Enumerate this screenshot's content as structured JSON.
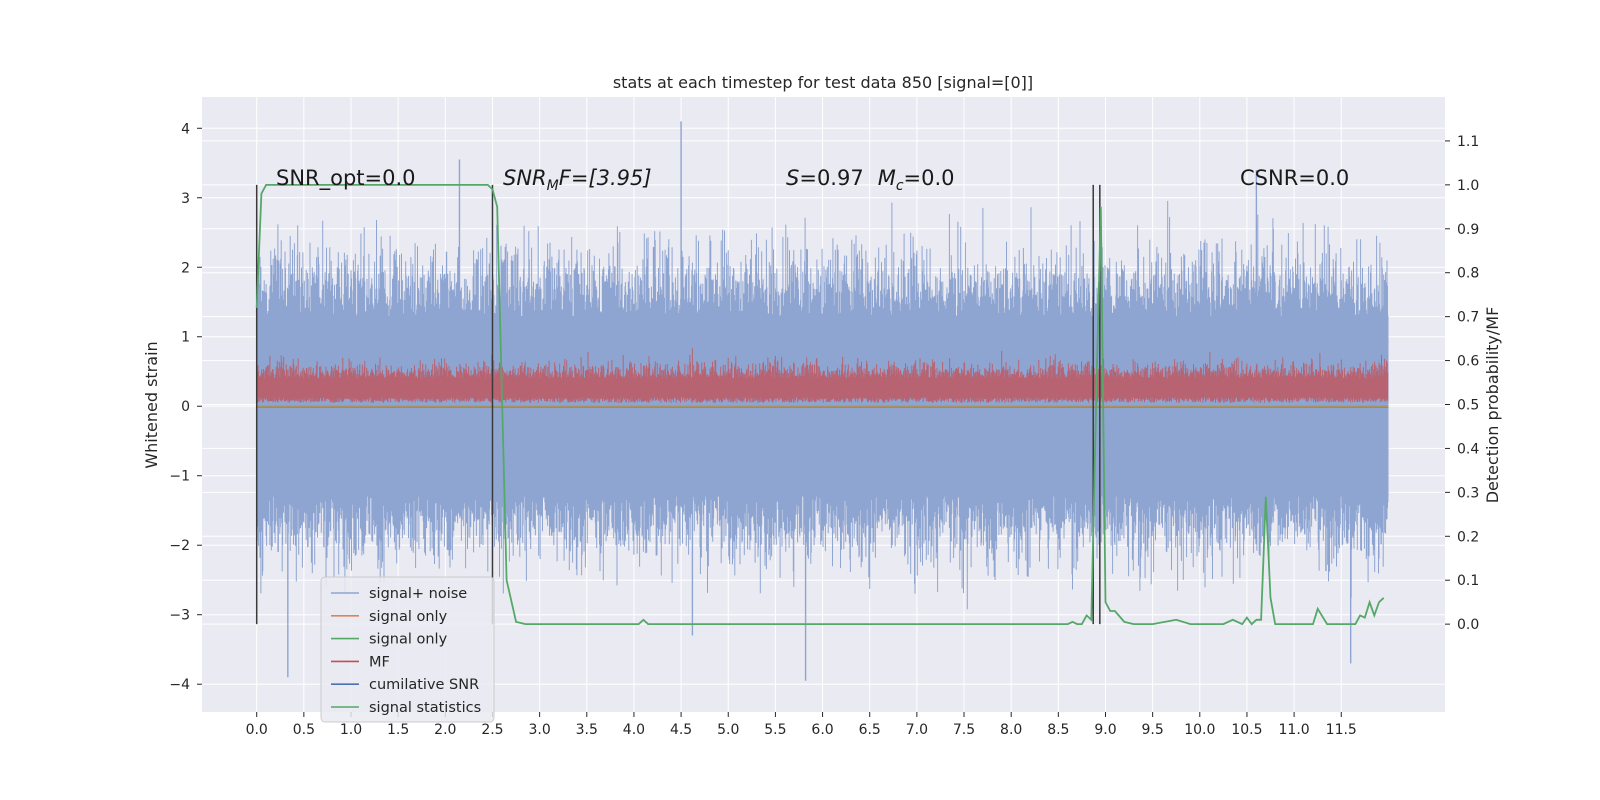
{
  "chart_data": {
    "type": "line",
    "title": "stats at each timestep for test data 850 [signal=[0]]",
    "xlabel": "",
    "ylabel": "Whitened strain",
    "ylabel_right": "Detection probability/MF",
    "xlim": [
      -0.58,
      12.6
    ],
    "ylim": [
      -4.4,
      4.45
    ],
    "ylim_right": [
      -0.2,
      1.2
    ],
    "x_ticks": [
      "0.0",
      "0.5",
      "1.0",
      "1.5",
      "2.0",
      "2.5",
      "3.0",
      "3.5",
      "4.0",
      "4.5",
      "5.0",
      "5.5",
      "6.0",
      "6.5",
      "7.0",
      "7.5",
      "8.0",
      "8.5",
      "9.0",
      "9.5",
      "10.0",
      "10.5",
      "11.0",
      "11.5"
    ],
    "y_ticks": [
      "−4",
      "−3",
      "−2",
      "−1",
      "0",
      "1",
      "2",
      "3",
      "4"
    ],
    "y_ticks_right": [
      "0.0",
      "0.1",
      "0.2",
      "0.3",
      "0.4",
      "0.5",
      "0.6",
      "0.7",
      "0.8",
      "0.9",
      "1.0",
      "1.1"
    ],
    "grid": true,
    "legend_position": "lower-left",
    "annotations": {
      "snr_opt": "SNR_opt=0.0",
      "snr_mf_base": "SNR",
      "snr_mf_sub": "M",
      "snr_mf_rest": "F=[3.95]",
      "s_label": "S",
      "s_value": "=0.97",
      "mc_label": "M",
      "mc_sub": "c",
      "mc_value": "=0.0",
      "csnr": "CSNR=0.0"
    },
    "vertical_markers": [
      0.0,
      2.5,
      8.87,
      8.94
    ],
    "series": [
      {
        "name": "signal+ noise",
        "color": "#8fa5d1",
        "style": "noise band",
        "x_range": [
          0.0,
          12.0
        ],
        "mean": 0.0,
        "band": [
          -1.3,
          1.3
        ],
        "peaks": [
          -3.95,
          4.1
        ]
      },
      {
        "name": "signal only",
        "color": "#dd8452",
        "values_note": "",
        "level": 0.0
      },
      {
        "name": "signal only",
        "color": "#55a868",
        "level": 0.0
      },
      {
        "name": "MF",
        "color": "#c44e52",
        "style": "noise band",
        "band": [
          0.05,
          0.7
        ]
      },
      {
        "name": "cumilative SNR",
        "color": "#4c72b0"
      },
      {
        "name": "signal statistics",
        "color": "#55a868",
        "axis": "right",
        "x": [
          0.0,
          0.05,
          0.1,
          0.3,
          2.45,
          2.5,
          2.55,
          2.65,
          2.75,
          2.85,
          3.0,
          4.0,
          4.05,
          4.1,
          4.15,
          4.2,
          5.0,
          7.0,
          7.3,
          7.4,
          8.4,
          8.5,
          8.6,
          8.65,
          8.7,
          8.75,
          8.8,
          8.85,
          8.9,
          8.95,
          9.0,
          9.05,
          9.1,
          9.2,
          9.3,
          9.5,
          9.75,
          9.9,
          10.0,
          10.25,
          10.35,
          10.45,
          10.5,
          10.55,
          10.6,
          10.65,
          10.7,
          10.75,
          10.8,
          10.9,
          11.0,
          11.2,
          11.25,
          11.35,
          11.6,
          11.65,
          11.7,
          11.75,
          11.8,
          11.85,
          11.9,
          11.95
        ],
        "y": [
          0.72,
          0.98,
          1.0,
          1.0,
          1.0,
          0.99,
          0.95,
          0.1,
          0.005,
          0.0,
          0.0,
          0.0,
          0.0,
          0.01,
          0.0,
          0.0,
          0.0,
          0.0,
          0.0,
          0.0,
          0.0,
          0.0,
          0.0,
          0.005,
          0.0,
          0.0,
          0.02,
          0.01,
          0.5,
          0.95,
          0.05,
          0.03,
          0.03,
          0.005,
          0.0,
          0.0,
          0.01,
          0.0,
          0.0,
          0.0,
          0.01,
          0.0,
          0.015,
          0.0,
          0.01,
          0.01,
          0.29,
          0.06,
          0.0,
          0.0,
          0.0,
          0.0,
          0.035,
          0.0,
          0.0,
          0.0,
          0.02,
          0.015,
          0.05,
          0.02,
          0.05,
          0.06
        ]
      }
    ]
  }
}
